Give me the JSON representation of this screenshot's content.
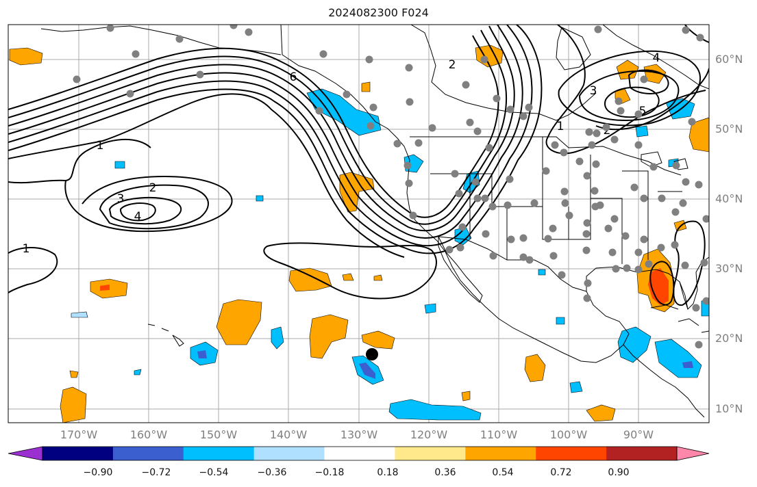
{
  "title": "2024082300 F024",
  "lat_labels": [
    "60°N",
    "50°N",
    "40°N",
    "30°N",
    "20°N",
    "10°N"
  ],
  "lon_labels": [
    "170°W",
    "160°W",
    "150°W",
    "140°W",
    "130°W",
    "120°W",
    "110°W",
    "100°W",
    "90°W"
  ],
  "contour_labels": [
    "1",
    "2",
    "3",
    "4",
    "5",
    "6"
  ],
  "colorbar": {
    "tick_labels": [
      "−0.90",
      "−0.72",
      "−0.54",
      "−0.36",
      "−0.18",
      "0.18",
      "0.36",
      "0.54",
      "0.72",
      "0.90"
    ],
    "colors": [
      "#9b30d0",
      "#000080",
      "#3c5fd0",
      "#00bfff",
      "#b0e0ff",
      "#ffffff",
      "#ffe98a",
      "#ffa500",
      "#ff4500",
      "#b22222",
      "#ff88aa"
    ]
  },
  "colors": {
    "contour": "#000000",
    "station_marker": "#808080",
    "storm_marker": "#000000",
    "grid": "#aaaaaa",
    "land_outline": "#000000"
  }
}
